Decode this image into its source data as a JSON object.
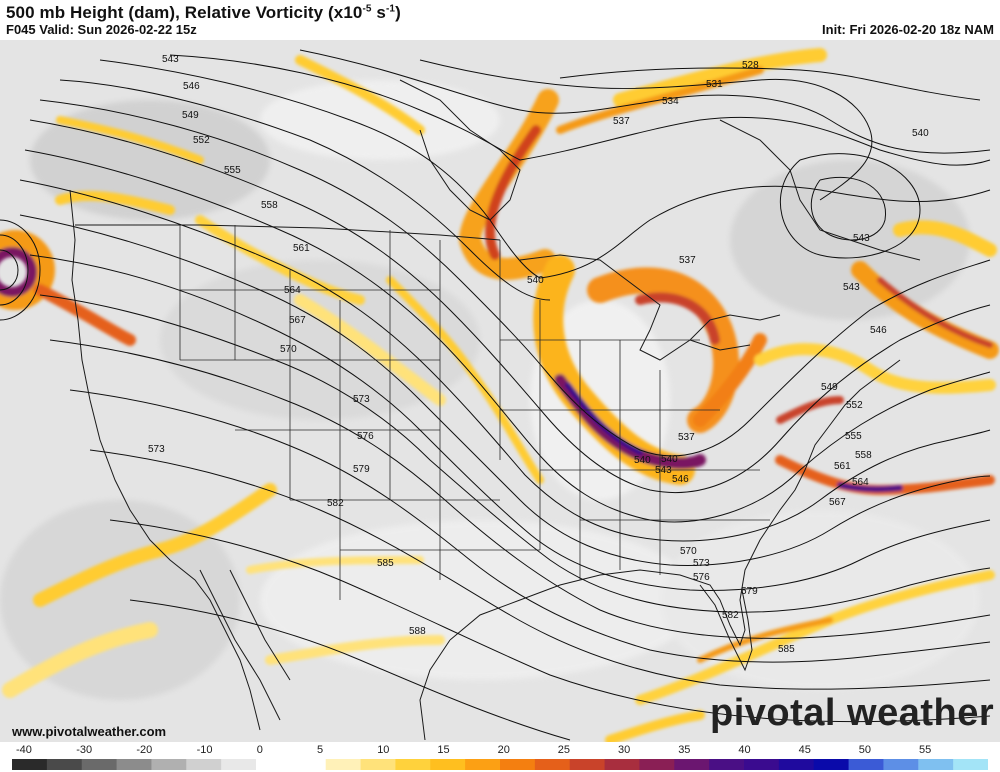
{
  "header": {
    "title_main": "500 mb Height (dam), Relative Vorticity (x10",
    "title_exp": "-5",
    "title_unit": " s",
    "title_unit_exp": "-1",
    "title_close": ")",
    "valid": "F045 Valid: Sun 2026-02-22 15z",
    "init": "Init: Fri 2026-02-20 18z NAM"
  },
  "footer": {
    "website": "www.pivotalweather.com",
    "brand": "pivotal weather"
  },
  "colorbar": {
    "ticks": [
      "-40",
      "-30",
      "-20",
      "-10",
      "0",
      "5",
      "10",
      "15",
      "20",
      "25",
      "30",
      "35",
      "40",
      "45",
      "50",
      "55"
    ],
    "colors": [
      "#2a2a2a",
      "#4a4a4a",
      "#6a6a6a",
      "#8c8c8c",
      "#b0b0b0",
      "#d0d0d0",
      "#e8e8e8",
      "#ffffff",
      "#ffffff",
      "#fff1b8",
      "#ffe27a",
      "#ffd23c",
      "#ffbf1f",
      "#fca014",
      "#f47f10",
      "#e5601a",
      "#c9432a",
      "#a82e3e",
      "#8a1f55",
      "#6b1670",
      "#4a0f85",
      "#3a0b8f",
      "#1f0a9e",
      "#0a0aaa",
      "#3b5bd6",
      "#5d8fe6",
      "#7fc0f0",
      "#a3e4f7"
    ]
  },
  "map": {
    "contour_labels": [
      {
        "text": "528"
      },
      {
        "text": "531"
      },
      {
        "text": "534"
      },
      {
        "text": "537"
      },
      {
        "text": "540"
      },
      {
        "text": "543"
      },
      {
        "text": "546"
      },
      {
        "text": "549"
      },
      {
        "text": "552"
      },
      {
        "text": "555"
      },
      {
        "text": "558"
      },
      {
        "text": "561"
      },
      {
        "text": "564"
      },
      {
        "text": "567"
      },
      {
        "text": "570"
      },
      {
        "text": "573"
      },
      {
        "text": "576"
      },
      {
        "text": "579"
      },
      {
        "text": "582"
      },
      {
        "text": "585"
      },
      {
        "text": "588"
      },
      {
        "text": "540"
      },
      {
        "text": "537"
      },
      {
        "text": "543"
      },
      {
        "text": "546"
      },
      {
        "text": "537"
      },
      {
        "text": "540"
      },
      {
        "text": "543"
      },
      {
        "text": "546"
      },
      {
        "text": "549"
      },
      {
        "text": "552"
      },
      {
        "text": "555"
      },
      {
        "text": "558"
      },
      {
        "text": "561"
      },
      {
        "text": "564"
      },
      {
        "text": "567"
      },
      {
        "text": "570"
      },
      {
        "text": "573"
      },
      {
        "text": "576"
      },
      {
        "text": "579"
      },
      {
        "text": "582"
      },
      {
        "text": "585"
      },
      {
        "text": "540"
      },
      {
        "text": "543"
      },
      {
        "text": "573"
      }
    ]
  }
}
